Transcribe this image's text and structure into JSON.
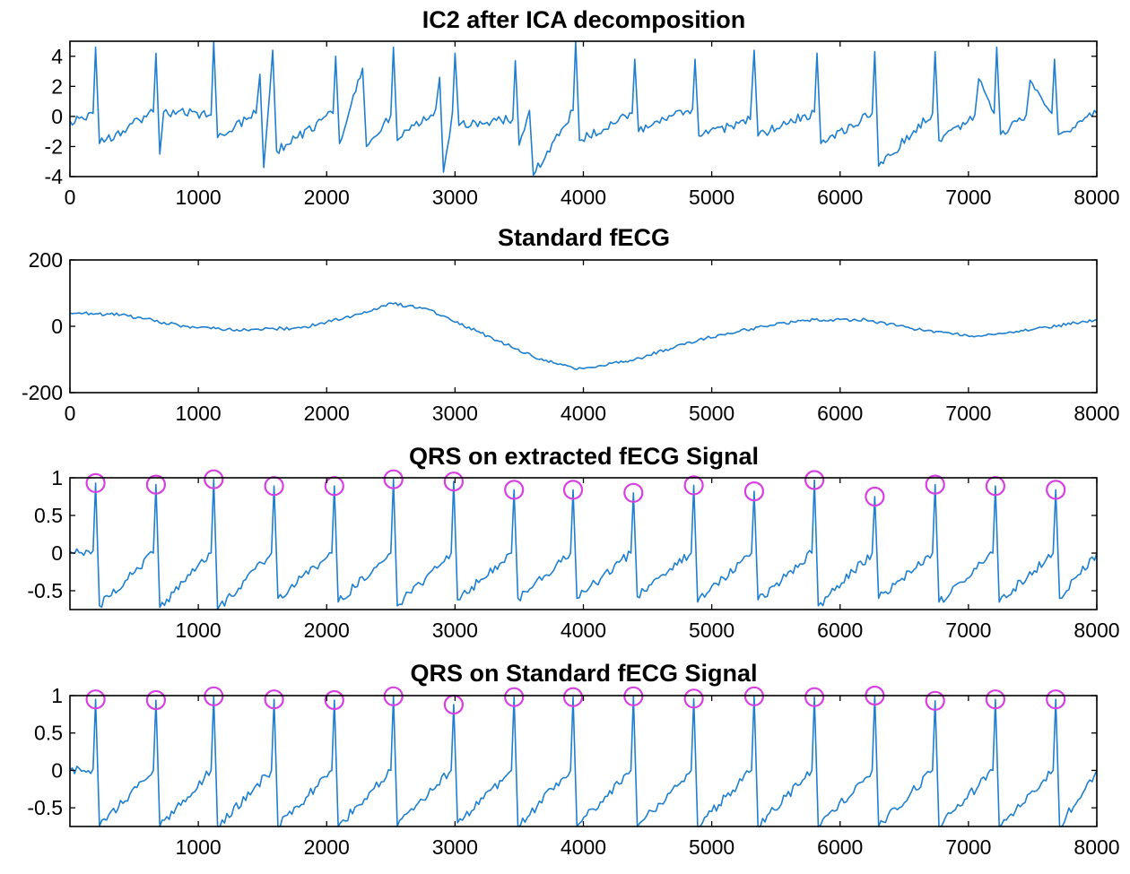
{
  "chart_data": [
    {
      "type": "line",
      "title": "IC2 after ICA decomposition",
      "xlim": [
        0,
        8000
      ],
      "ylim": [
        -4,
        5
      ],
      "xticks": [
        0,
        1000,
        2000,
        3000,
        4000,
        5000,
        6000,
        7000,
        8000
      ],
      "xtick_labels": [
        "0",
        "1000",
        "2000",
        "3000",
        "4000",
        "5000",
        "6000",
        "7000",
        "8000"
      ],
      "yticks": [
        4,
        2,
        0,
        -2,
        -4
      ],
      "ytick_labels": [
        "4",
        "2",
        "0",
        "-2",
        "-4"
      ],
      "line_color": "#1f7fcf",
      "series": [
        {
          "x": [
            0,
            180,
            200,
            230,
            650,
            670,
            700,
            730,
            1100,
            1120,
            1150,
            1450,
            1480,
            1510,
            1580,
            1610,
            2050,
            2070,
            2100,
            2280,
            2310,
            2500,
            2520,
            2550,
            2850,
            2880,
            2910,
            2980,
            3000,
            3030,
            3450,
            3470,
            3500,
            3580,
            3610,
            3920,
            3940,
            3970,
            4380,
            4400,
            4430,
            4850,
            4870,
            4900,
            5300,
            5330,
            5360,
            5800,
            5820,
            5850,
            6250,
            6270,
            6300,
            6720,
            6740,
            6770,
            7050,
            7080,
            7200,
            7220,
            7250,
            7450,
            7480,
            7650,
            7670,
            7700,
            8000
          ],
          "y": [
            -0.3,
            0.2,
            4.6,
            -1.8,
            0.3,
            4.2,
            -2.5,
            0.3,
            0.1,
            5.0,
            -1.4,
            0.2,
            2.8,
            -3.4,
            4.4,
            -2.3,
            0.2,
            4.0,
            -1.8,
            3.2,
            -2.0,
            0.1,
            4.6,
            -1.6,
            0.5,
            2.6,
            -3.7,
            0.3,
            4.2,
            -0.6,
            -0.2,
            3.7,
            -1.9,
            0.4,
            -3.9,
            0.4,
            5.0,
            -1.6,
            0.2,
            3.8,
            -1.0,
            0.5,
            3.8,
            -1.3,
            -0.2,
            4.4,
            -1.3,
            0.3,
            4.2,
            -1.8,
            0.2,
            4.3,
            -3.3,
            0.2,
            4.3,
            -1.6,
            0.1,
            2.5,
            0.2,
            4.6,
            -1.2,
            0.1,
            2.4,
            0.2,
            3.8,
            -1.2,
            0.2
          ]
        }
      ]
    },
    {
      "type": "line",
      "title": "Standard fECG",
      "xlim": [
        0,
        8000
      ],
      "ylim": [
        -200,
        200
      ],
      "xticks": [
        0,
        1000,
        2000,
        3000,
        4000,
        5000,
        6000,
        7000,
        8000
      ],
      "xtick_labels": [
        "0",
        "1000",
        "2000",
        "3000",
        "4000",
        "5000",
        "6000",
        "7000",
        "8000"
      ],
      "yticks": [
        200,
        0,
        -200
      ],
      "ytick_labels": [
        "200",
        "0",
        "-200"
      ],
      "line_color": "#1f7fcf",
      "series": [
        {
          "x": [
            0,
            400,
            900,
            1300,
            1800,
            2200,
            2500,
            2800,
            3200,
            3600,
            3950,
            4400,
            4900,
            5400,
            5800,
            6200,
            6600,
            7100,
            7500,
            8000
          ],
          "y": [
            40,
            35,
            0,
            -10,
            -5,
            30,
            70,
            50,
            -20,
            -90,
            -130,
            -100,
            -40,
            0,
            20,
            20,
            -10,
            -30,
            -10,
            20
          ]
        }
      ]
    },
    {
      "type": "line",
      "title": "QRS on extracted fECG Signal",
      "xlim": [
        0,
        8000
      ],
      "ylim": [
        -0.75,
        1
      ],
      "xticks": [
        1000,
        2000,
        3000,
        4000,
        5000,
        6000,
        7000,
        8000
      ],
      "xtick_labels": [
        "1000",
        "2000",
        "3000",
        "4000",
        "5000",
        "6000",
        "7000",
        "8000"
      ],
      "yticks": [
        1,
        0.5,
        0,
        -0.5
      ],
      "ytick_labels": [
        "1",
        "0.5",
        "0",
        "-0.5"
      ],
      "line_color": "#1f7fcf",
      "marker_color": "#d63fe0",
      "series": [
        {
          "x": [
            0,
            180,
            200,
            230,
            650,
            670,
            700,
            1100,
            1120,
            1150,
            1570,
            1590,
            1620,
            2040,
            2060,
            2090,
            2500,
            2520,
            2550,
            2970,
            2990,
            3020,
            3440,
            3460,
            3490,
            3900,
            3920,
            3950,
            4370,
            4390,
            4420,
            4840,
            4860,
            4890,
            5310,
            5330,
            5360,
            5780,
            5800,
            5830,
            6250,
            6270,
            6300,
            6720,
            6740,
            6770,
            7190,
            7210,
            7240,
            7660,
            7680,
            7710,
            8000
          ],
          "y": [
            0.02,
            0.03,
            0.93,
            -0.7,
            0.0,
            0.91,
            -0.72,
            0.0,
            0.98,
            -0.75,
            0.0,
            0.89,
            -0.6,
            0.0,
            0.89,
            -0.65,
            0.0,
            0.98,
            -0.7,
            0.0,
            0.95,
            -0.62,
            0.0,
            0.84,
            -0.6,
            0.0,
            0.84,
            -0.6,
            0.0,
            0.8,
            -0.58,
            0.0,
            0.9,
            -0.65,
            0.0,
            0.82,
            -0.62,
            0.0,
            0.97,
            -0.7,
            0.0,
            0.75,
            -0.6,
            0.0,
            0.91,
            -0.65,
            0.0,
            0.89,
            -0.65,
            0.0,
            0.84,
            -0.6,
            0.0
          ]
        }
      ],
      "qrs_peaks": {
        "x": [
          200,
          670,
          1120,
          1590,
          2060,
          2520,
          2990,
          3460,
          3920,
          4390,
          4860,
          5330,
          5800,
          6270,
          6740,
          7210,
          7680
        ],
        "y": [
          0.93,
          0.91,
          0.98,
          0.89,
          0.89,
          0.98,
          0.95,
          0.84,
          0.84,
          0.8,
          0.9,
          0.82,
          0.97,
          0.75,
          0.91,
          0.89,
          0.84
        ]
      }
    },
    {
      "type": "line",
      "title": "QRS on Standard fECG Signal",
      "xlim": [
        0,
        8000
      ],
      "ylim": [
        -0.75,
        1
      ],
      "xticks": [
        1000,
        2000,
        3000,
        4000,
        5000,
        6000,
        7000,
        8000
      ],
      "xtick_labels": [
        "1000",
        "2000",
        "3000",
        "4000",
        "5000",
        "6000",
        "7000",
        "8000"
      ],
      "yticks": [
        1,
        0.5,
        0,
        -0.5
      ],
      "ytick_labels": [
        "1",
        "0.5",
        "0",
        "-0.5"
      ],
      "line_color": "#1f7fcf",
      "marker_color": "#d63fe0",
      "series": [
        {
          "x": [
            0,
            180,
            200,
            230,
            650,
            670,
            700,
            1100,
            1120,
            1150,
            1570,
            1590,
            1620,
            2040,
            2060,
            2090,
            2500,
            2520,
            2550,
            2970,
            2990,
            3020,
            3440,
            3460,
            3490,
            3900,
            3920,
            3950,
            4370,
            4390,
            4420,
            4840,
            4860,
            4890,
            5310,
            5330,
            5360,
            5780,
            5800,
            5830,
            6250,
            6270,
            6300,
            6720,
            6740,
            6770,
            7190,
            7210,
            7240,
            7660,
            7680,
            7710,
            8000
          ],
          "y": [
            0.0,
            0.02,
            0.95,
            -0.75,
            0.0,
            0.94,
            -0.75,
            0.0,
            0.99,
            -0.75,
            0.0,
            0.95,
            -0.75,
            0.0,
            0.94,
            -0.75,
            0.0,
            0.99,
            -0.75,
            0.0,
            0.88,
            -0.7,
            0.0,
            0.98,
            -0.75,
            0.0,
            0.98,
            -0.75,
            0.0,
            0.99,
            -0.75,
            0.0,
            0.96,
            -0.75,
            0.0,
            0.99,
            -0.75,
            0.0,
            0.98,
            -0.75,
            0.0,
            1.0,
            -0.75,
            0.0,
            0.93,
            -0.75,
            0.0,
            0.95,
            -0.75,
            0.0,
            0.95,
            -0.75,
            0.0
          ]
        }
      ],
      "qrs_peaks": {
        "x": [
          200,
          670,
          1120,
          1590,
          2060,
          2520,
          2990,
          3460,
          3920,
          4390,
          4860,
          5330,
          5800,
          6270,
          6740,
          7210,
          7680
        ],
        "y": [
          0.95,
          0.94,
          0.99,
          0.95,
          0.94,
          0.99,
          0.88,
          0.98,
          0.98,
          0.99,
          0.96,
          0.99,
          0.98,
          1.0,
          0.93,
          0.95,
          0.95
        ]
      }
    }
  ]
}
